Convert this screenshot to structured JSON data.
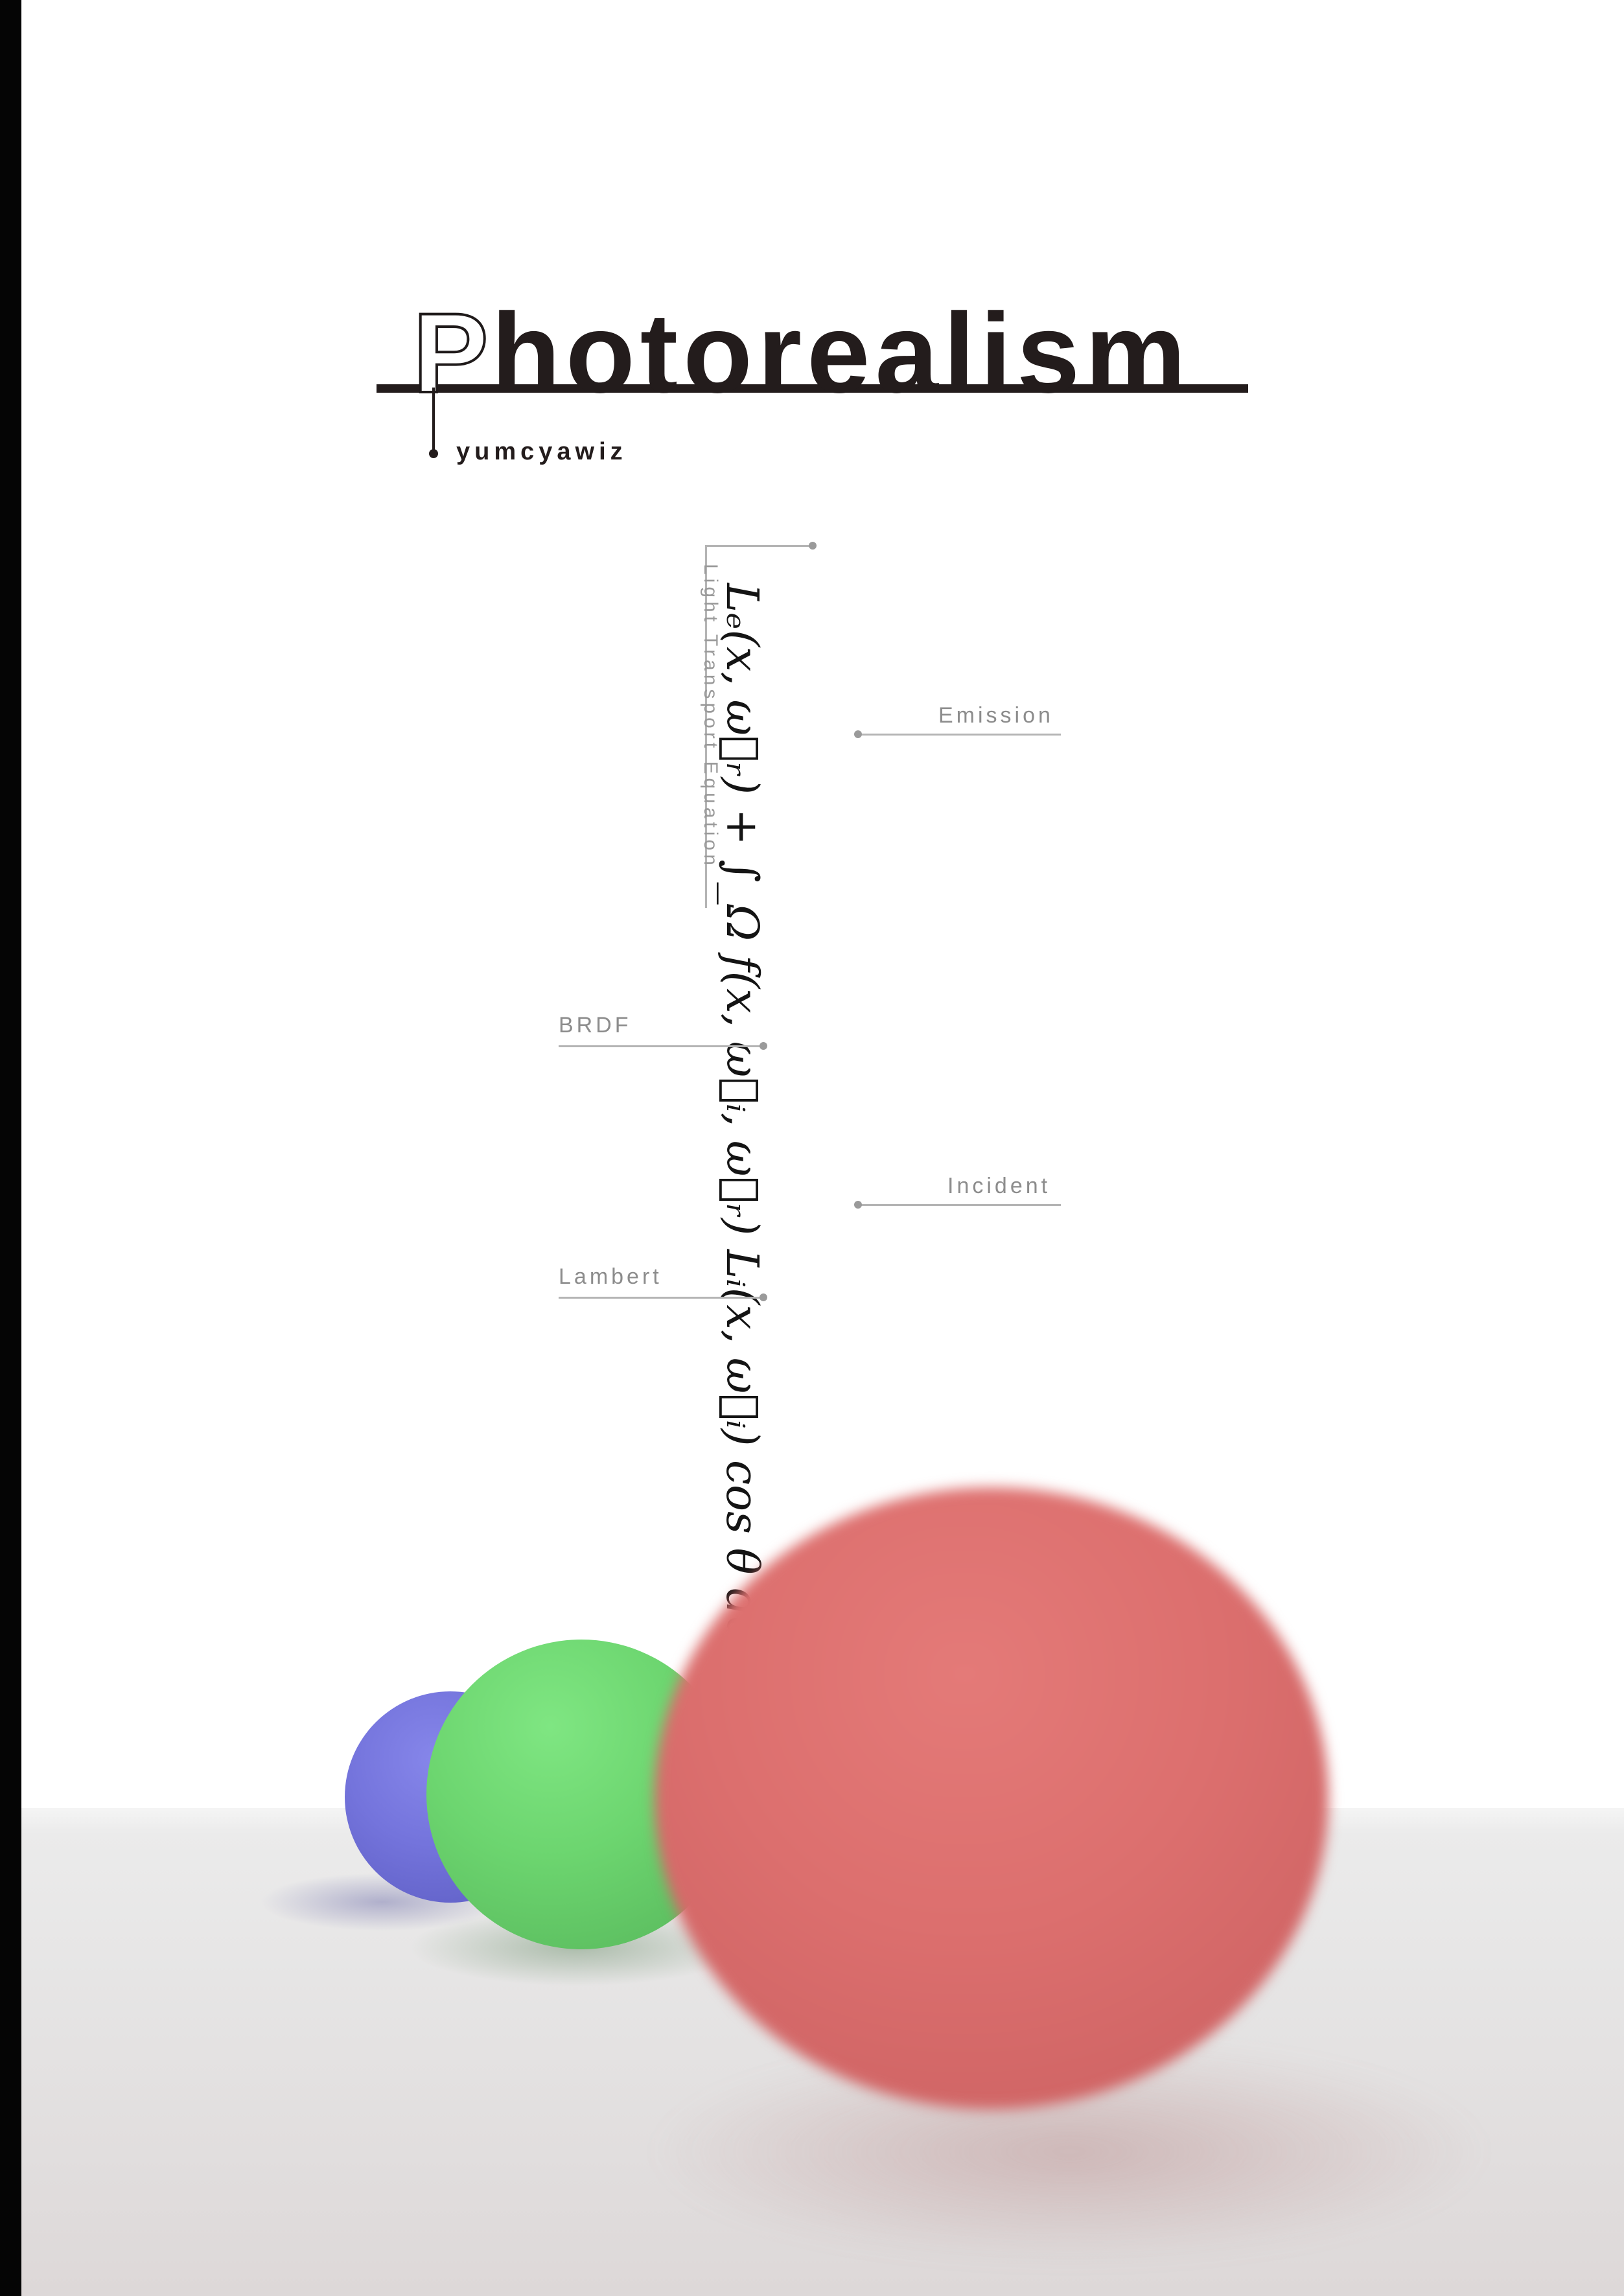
{
  "title": {
    "initial": "P",
    "rest": "hotorealism"
  },
  "author": "yumcyawiz",
  "equation": {
    "label": "Light Transport Equation",
    "formula": "Lₑ(x, ω⃗ᵣ) + ∫_Ω f(x, ω⃗ᵢ, ω⃗ᵣ) Lᵢ(x, ω⃗ᵢ) cos θ dω⃗ᵢ"
  },
  "callouts": {
    "emission": "Emission",
    "brdf": "BRDF",
    "incident": "Incident",
    "lambert": "Lambert"
  },
  "colors": {
    "ink": "#231c1c",
    "blue_sphere": "#7777e0",
    "green_sphere": "#6fdc72",
    "red_sphere": "#dc6e6e",
    "side_bar": "#050505"
  }
}
